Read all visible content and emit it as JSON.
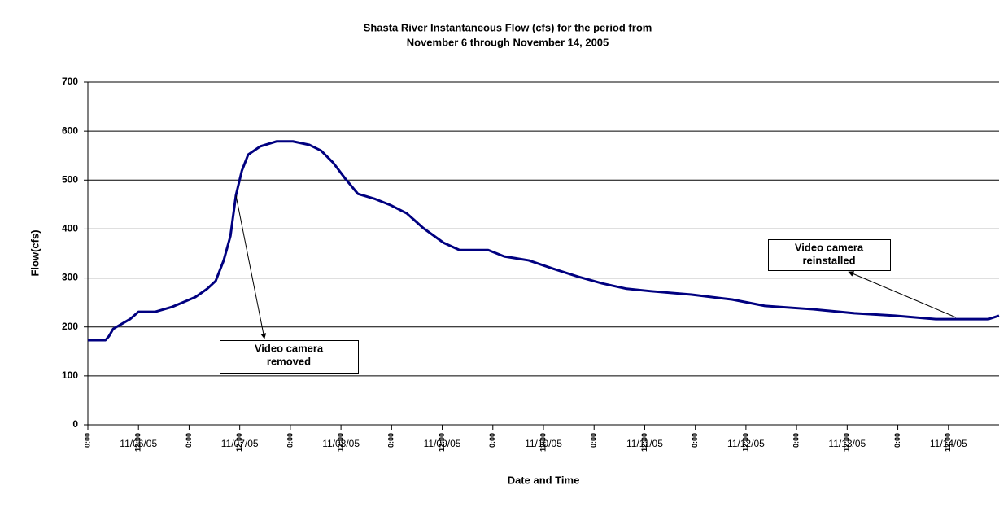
{
  "chart_data": {
    "type": "line",
    "title": [
      "Shasta River Instantaneous Flow (cfs) for the period from",
      "November 6 through November 14, 2005"
    ],
    "x_label": "Date and Time",
    "y_label": "Flow(cfs)",
    "x": [
      0,
      4.2,
      5,
      6,
      8,
      10,
      12,
      16,
      20,
      22.5,
      25.5,
      28.3,
      30.3,
      32.2,
      33.8,
      35.1,
      36.5,
      38,
      40.9,
      44.7,
      48.6,
      52.5,
      55.3,
      58.2,
      61.1,
      64,
      67.9,
      71.7,
      75.6,
      79.5,
      84.3,
      88.1,
      94.9,
      98.7,
      104.5,
      110.3,
      116.1,
      121.9,
      127.7,
      133.5,
      143.1,
      152.7,
      160.5,
      172,
      181.7,
      191.3,
      201,
      213.5,
      216
    ],
    "series": [
      {
        "name": "Flow",
        "color": "#000080",
        "values": [
          173,
          173,
          181,
          196,
          206,
          216,
          231,
          231,
          241,
          250,
          261,
          278,
          294,
          336,
          386,
          469,
          519,
          552,
          569,
          579,
          579,
          572,
          560,
          535,
          502,
          472,
          462,
          449,
          432,
          402,
          372,
          357,
          357,
          344,
          336,
          319,
          303,
          289,
          278,
          273,
          266,
          256,
          243,
          236,
          228,
          223,
          216,
          216,
          223
        ]
      }
    ],
    "xlim": [
      0,
      216
    ],
    "xticks": [
      {
        "value": 0,
        "label": "0:00"
      },
      {
        "value": 12,
        "label": "12:00"
      },
      {
        "value": 24,
        "label": "0:00"
      },
      {
        "value": 36,
        "label": "12:00"
      },
      {
        "value": 48,
        "label": "0:00"
      },
      {
        "value": 60,
        "label": "12:00"
      },
      {
        "value": 72,
        "label": "0:00"
      },
      {
        "value": 84,
        "label": "12:00"
      },
      {
        "value": 96,
        "label": "0:00"
      },
      {
        "value": 108,
        "label": "12:00"
      },
      {
        "value": 120,
        "label": "0:00"
      },
      {
        "value": 132,
        "label": "12:00"
      },
      {
        "value": 144,
        "label": "0:00"
      },
      {
        "value": 156,
        "label": "12:00"
      },
      {
        "value": 168,
        "label": "0:00"
      },
      {
        "value": 180,
        "label": "12:00"
      },
      {
        "value": 192,
        "label": "0:00"
      },
      {
        "value": 204,
        "label": "12:00"
      }
    ],
    "day_labels": [
      "11/06/05",
      "11/07/05",
      "11/08/05",
      "11/09/05",
      "11/10/05",
      "11/11/05",
      "11/12/05",
      "11/13/05",
      "11/14/05"
    ],
    "ylim": [
      0,
      700
    ],
    "yticks": [
      0,
      100,
      200,
      300,
      400,
      500,
      600,
      700
    ],
    "grid": true,
    "annotations": [
      {
        "lines": [
          "Video camera",
          "removed"
        ]
      },
      {
        "lines": [
          "Video camera",
          "reinstalled"
        ]
      }
    ]
  }
}
